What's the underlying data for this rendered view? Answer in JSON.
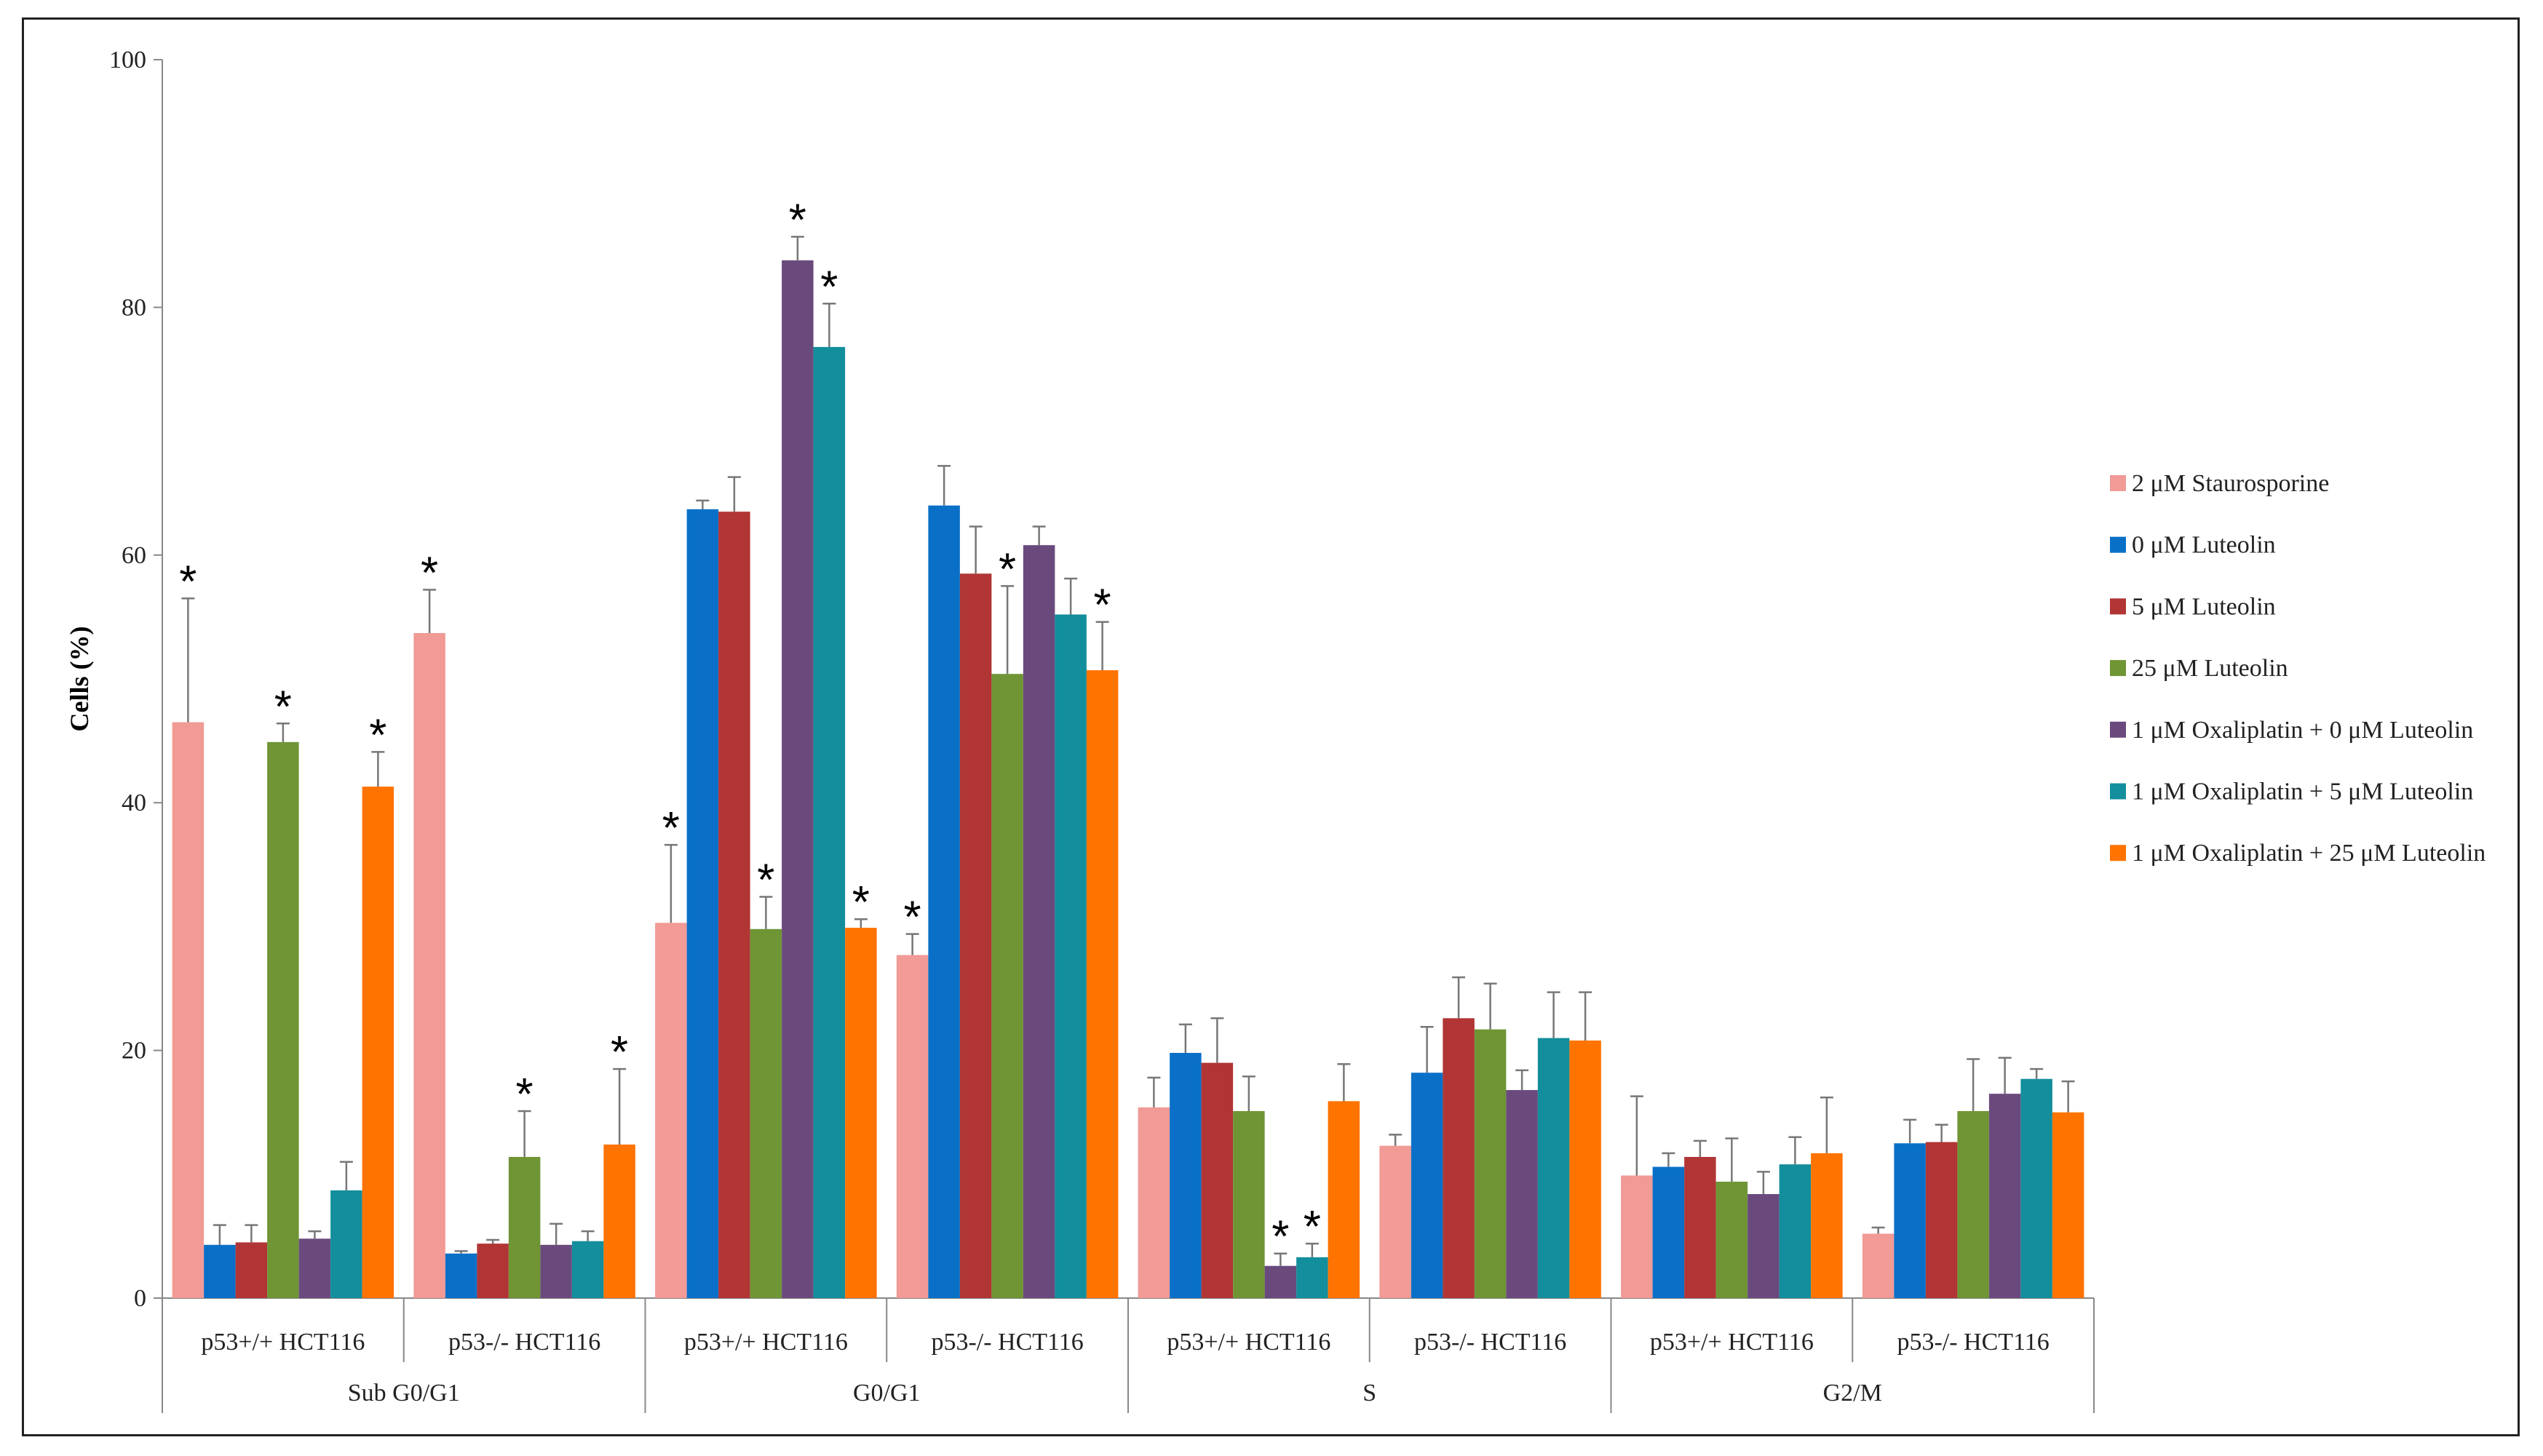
{
  "chart_data": {
    "type": "bar",
    "title": "",
    "xlabel": "",
    "ylabel": "Cells (%)",
    "ylim": [
      0,
      100
    ],
    "yticks": [
      0,
      20,
      40,
      60,
      80,
      100
    ],
    "groups": [
      "Sub G0/G1",
      "G0/G1",
      "S",
      "G2/M"
    ],
    "subgroups": [
      "p53+/+ HCT116",
      "p53-/- HCT116"
    ],
    "series": [
      {
        "name": "2 μM Staurosporine",
        "color": "#F19A96",
        "values": [
          46.5,
          53.7,
          30.3,
          27.7,
          15.4,
          12.3,
          9.9,
          5.2
        ],
        "errors": [
          10,
          3.5,
          6.3,
          1.7,
          2.4,
          0.9,
          6.4,
          0.5
        ],
        "sig": [
          true,
          true,
          true,
          true,
          false,
          false,
          false,
          false
        ]
      },
      {
        "name": "0 μM Luteolin",
        "color": "#0A70C7",
        "values": [
          4.3,
          3.6,
          63.7,
          64.0,
          19.8,
          18.2,
          10.6,
          12.5
        ],
        "errors": [
          1.6,
          0.2,
          0.7,
          3.2,
          2.3,
          3.7,
          1.1,
          1.9
        ],
        "sig": [
          false,
          false,
          false,
          false,
          false,
          false,
          false,
          false
        ]
      },
      {
        "name": "5 μM Luteolin",
        "color": "#B13535",
        "values": [
          4.5,
          4.4,
          63.5,
          58.5,
          19.0,
          22.6,
          11.4,
          12.6
        ],
        "errors": [
          1.4,
          0.3,
          2.8,
          3.8,
          3.6,
          3.3,
          1.3,
          1.4
        ],
        "sig": [
          false,
          false,
          false,
          false,
          false,
          false,
          false,
          false
        ]
      },
      {
        "name": "25 μM Luteolin",
        "color": "#6F9535",
        "values": [
          44.9,
          11.4,
          29.8,
          50.4,
          15.1,
          21.7,
          9.4,
          15.1
        ],
        "errors": [
          1.5,
          3.7,
          2.6,
          7.1,
          2.8,
          3.7,
          3.5,
          4.2
        ],
        "sig": [
          true,
          true,
          true,
          true,
          false,
          false,
          false,
          false
        ]
      },
      {
        "name": "1 μM Oxaliplatin + 0 μM Luteolin",
        "color": "#6A4A7D",
        "values": [
          4.8,
          4.3,
          83.8,
          60.8,
          2.6,
          16.8,
          8.4,
          16.5
        ],
        "errors": [
          0.6,
          1.7,
          1.9,
          1.5,
          1.0,
          1.6,
          1.8,
          2.9
        ],
        "sig": [
          false,
          false,
          true,
          false,
          true,
          false,
          false,
          false
        ]
      },
      {
        "name": "1 μM Oxaliplatin + 5 μM Luteolin",
        "color": "#138E9C",
        "values": [
          8.7,
          4.6,
          76.8,
          55.2,
          3.3,
          21.0,
          10.8,
          17.7
        ],
        "errors": [
          2.3,
          0.8,
          3.5,
          2.9,
          1.1,
          3.7,
          2.2,
          0.8
        ],
        "sig": [
          false,
          false,
          true,
          false,
          true,
          false,
          false,
          false
        ]
      },
      {
        "name": "1 μM Oxaliplatin + 25 μM Luteolin",
        "color": "#FF7300",
        "values": [
          41.3,
          12.4,
          29.9,
          50.7,
          15.9,
          20.8,
          11.7,
          15.0
        ],
        "errors": [
          2.8,
          6.1,
          0.7,
          3.9,
          3.0,
          3.9,
          4.5,
          2.5
        ],
        "sig": [
          true,
          true,
          true,
          true,
          false,
          false,
          false,
          false
        ]
      }
    ],
    "significance_marker": "*",
    "legend": "right",
    "grid": false
  }
}
